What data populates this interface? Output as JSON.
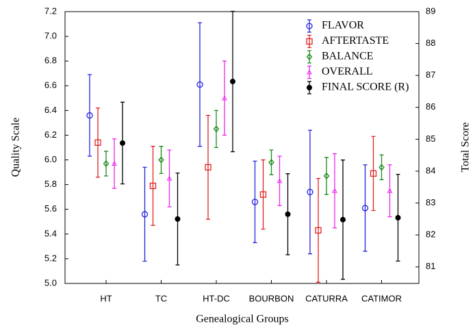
{
  "chart_data": {
    "type": "errorbar",
    "xlabel": "Genealogical Groups",
    "ylabel": "Quality Scale",
    "y2label": "Total Score",
    "categories": [
      "HT",
      "TC",
      "HT-DC",
      "BOURBON",
      "CATURRA",
      "CATIMOR"
    ],
    "ylim": [
      5.0,
      7.2
    ],
    "yticks": [
      {
        "value": 5.0,
        "label": "5.0"
      },
      5.2,
      5.4,
      5.6,
      5.8,
      {
        "value": 6.0,
        "label": "6.0"
      },
      6.2,
      6.4,
      6.6,
      6.8,
      {
        "value": 7.0,
        "label": "7.0"
      },
      7.2
    ],
    "y2lim": [
      80.48,
      89
    ],
    "y2ticks": [
      81,
      82,
      83,
      84,
      85,
      86,
      87,
      88,
      89
    ],
    "legend": "top-right",
    "series": [
      {
        "name": "FLAVOR",
        "color": "#2222dd",
        "marker": "circle",
        "axis": "y",
        "values": [
          6.36,
          5.56,
          6.61,
          5.66,
          5.74,
          5.61
        ],
        "errors": [
          0.33,
          0.38,
          0.5,
          0.33,
          0.5,
          0.35
        ]
      },
      {
        "name": "AFTERTASTE",
        "color": "#e02020",
        "marker": "square",
        "axis": "y",
        "values": [
          6.14,
          5.79,
          5.94,
          5.72,
          5.43,
          5.89
        ],
        "errors": [
          0.28,
          0.32,
          0.42,
          0.28,
          0.42,
          0.3
        ]
      },
      {
        "name": "BALANCE",
        "color": "#1a8a1a",
        "marker": "diamond",
        "axis": "y",
        "values": [
          5.97,
          6.0,
          6.25,
          5.98,
          5.87,
          5.94
        ],
        "errors": [
          0.1,
          0.11,
          0.15,
          0.1,
          0.15,
          0.1
        ]
      },
      {
        "name": "OVERALL",
        "color": "#ee22ee",
        "marker": "triangle",
        "axis": "y",
        "values": [
          5.97,
          5.85,
          6.5,
          5.83,
          5.75,
          5.75
        ],
        "errors": [
          0.2,
          0.23,
          0.3,
          0.2,
          0.3,
          0.21
        ]
      },
      {
        "name": "FINAL SCORE (R)",
        "color": "#000000",
        "marker": "dot",
        "axis": "y2",
        "values": [
          84.88,
          82.5,
          86.81,
          82.65,
          82.48,
          82.54
        ],
        "errors": [
          1.28,
          1.44,
          2.2,
          1.27,
          1.87,
          1.36
        ]
      }
    ]
  }
}
